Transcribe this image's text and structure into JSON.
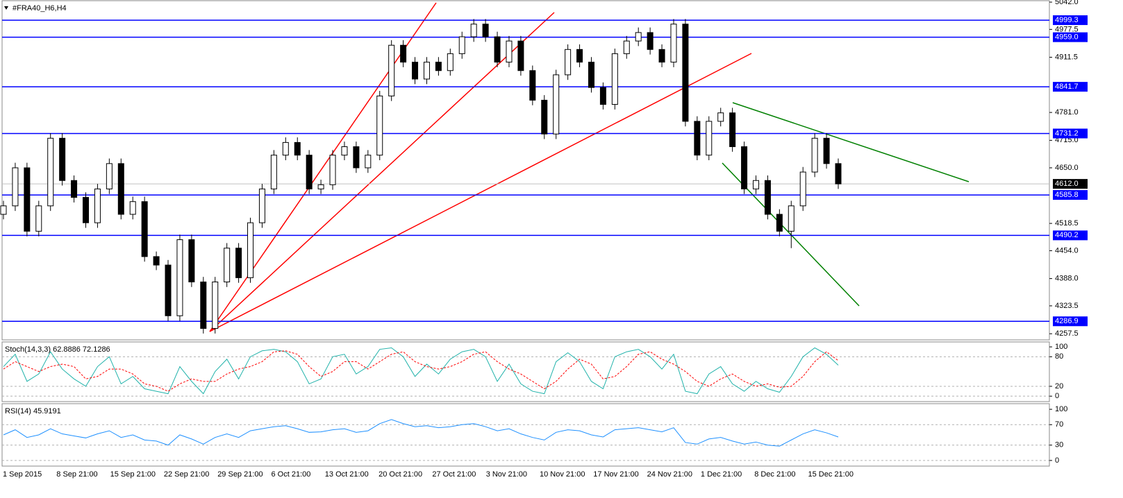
{
  "chart_data": [
    {
      "type": "candlestick",
      "title": "#FRA40_H6,H4",
      "open": [
        4540,
        4560,
        4650,
        4500,
        4560,
        4720,
        4620,
        4580,
        4520,
        4600,
        4660,
        4540,
        4570,
        4440,
        4420,
        4300,
        4480,
        4380,
        4270,
        4380,
        4460,
        4390,
        4520,
        4600,
        4680,
        4710,
        4680,
        4600,
        4610,
        4680,
        4700,
        4650,
        4680,
        4820,
        4940,
        4900,
        4860,
        4900,
        4880,
        4920,
        4960,
        4990,
        4960,
        4900,
        4950,
        4880,
        4810,
        4730,
        4870,
        4930,
        4900,
        4840,
        4800,
        4920,
        4950,
        4970,
        4930,
        4900,
        4990,
        4760,
        4680,
        4760,
        4780,
        4700,
        4600,
        4620,
        4540,
        4500,
        4560,
        4640,
        4720,
        4660
      ],
      "high": [
        4572,
        4662,
        4662,
        4572,
        4732,
        4732,
        4632,
        4592,
        4612,
        4672,
        4672,
        4582,
        4582,
        4452,
        4432,
        4492,
        4492,
        4392,
        4392,
        4472,
        4472,
        4532,
        4612,
        4692,
        4722,
        4722,
        4692,
        4622,
        4692,
        4712,
        4712,
        4692,
        4832,
        4952,
        4952,
        4912,
        4912,
        4912,
        4932,
        4972,
        5002,
        5002,
        4972,
        4962,
        4962,
        4892,
        4822,
        4882,
        4942,
        4942,
        4912,
        4852,
        4932,
        4962,
        4982,
        4982,
        4942,
        5002,
        5002,
        4772,
        4772,
        4792,
        4792,
        4712,
        4632,
        4632,
        4552,
        4572,
        4652,
        4732,
        4732,
        4672
      ],
      "low": [
        4528,
        4548,
        4488,
        4488,
        4548,
        4608,
        4568,
        4508,
        4508,
        4588,
        4528,
        4528,
        4428,
        4408,
        4288,
        4288,
        4368,
        4258,
        4258,
        4368,
        4378,
        4378,
        4508,
        4588,
        4668,
        4668,
        4588,
        4588,
        4598,
        4668,
        4638,
        4638,
        4668,
        4808,
        4888,
        4848,
        4848,
        4868,
        4868,
        4908,
        4948,
        4948,
        4888,
        4888,
        4868,
        4798,
        4718,
        4718,
        4858,
        4888,
        4828,
        4788,
        4788,
        4908,
        4938,
        4918,
        4888,
        4888,
        4748,
        4668,
        4668,
        4748,
        4688,
        4588,
        4588,
        4528,
        4488,
        4460,
        4548,
        4628,
        4648,
        4600
      ],
      "close": [
        4560,
        4650,
        4500,
        4560,
        4720,
        4620,
        4580,
        4520,
        4600,
        4660,
        4540,
        4570,
        4440,
        4420,
        4300,
        4480,
        4380,
        4270,
        4380,
        4460,
        4390,
        4520,
        4600,
        4680,
        4710,
        4680,
        4600,
        4610,
        4680,
        4700,
        4650,
        4680,
        4820,
        4940,
        4900,
        4860,
        4900,
        4880,
        4920,
        4960,
        4990,
        4960,
        4900,
        4950,
        4880,
        4810,
        4730,
        4870,
        4930,
        4900,
        4840,
        4800,
        4920,
        4950,
        4970,
        4930,
        4900,
        4990,
        4760,
        4680,
        4760,
        4780,
        4700,
        4600,
        4620,
        4540,
        4500,
        4560,
        4640,
        4720,
        4660,
        4612
      ],
      "up_color": "#ffffff",
      "down_color": "#000000",
      "wick_color": "#000000",
      "ylim": [
        4243,
        5047
      ],
      "yticks": [
        {
          "value": 5042,
          "label": "5042.0"
        },
        {
          "value": 4977.5,
          "label": "4977.5"
        },
        {
          "value": 4911.5,
          "label": "4911.5"
        },
        {
          "value": 4781,
          "label": "4781.0"
        },
        {
          "value": 4715,
          "label": "4715.0"
        },
        {
          "value": 4650,
          "label": "4650.0"
        },
        {
          "value": 4518.5,
          "label": "4518.5"
        },
        {
          "value": 4454,
          "label": "4454.0"
        },
        {
          "value": 4388,
          "label": "4388.0"
        },
        {
          "value": 4323.5,
          "label": "4323.5"
        },
        {
          "value": 4257.5,
          "label": "4257.5"
        }
      ],
      "levels": [
        4999.3,
        {
          "value": 4959,
          "label": "4959.0"
        },
        4841.7,
        4731.2,
        4585.8,
        4490.2,
        4286.9
      ],
      "level_color": "#0000ff",
      "current_price": {
        "value": 4612,
        "label": "4612.0"
      },
      "x_tick_labels": [
        "1 Sep 2015",
        "8 Sep 21:00",
        "15 Sep 21:00",
        "22 Sep 21:00",
        "29 Sep 21:00",
        "6 Oct 21:00",
        "13 Oct 21:00",
        "20 Oct 21:00",
        "27 Oct 21:00",
        "3 Nov 21:00",
        "10 Nov 21:00",
        "17 Nov 21:00",
        "24 Nov 21:00",
        "1 Dec 21:00",
        "8 Dec 21:00",
        "15 Dec 21:00"
      ]
    },
    {
      "type": "line",
      "title": "Stoch(14,3,3) 62.8886 72.1286",
      "series": [
        {
          "color": "#20b2aa",
          "values": [
            60,
            85,
            30,
            45,
            90,
            55,
            35,
            20,
            60,
            80,
            25,
            40,
            15,
            10,
            5,
            60,
            30,
            5,
            50,
            75,
            35,
            80,
            92,
            95,
            90,
            70,
            25,
            35,
            80,
            85,
            45,
            60,
            95,
            98,
            80,
            40,
            65,
            45,
            75,
            90,
            95,
            80,
            30,
            65,
            25,
            10,
            5,
            70,
            88,
            70,
            30,
            15,
            80,
            90,
            95,
            80,
            55,
            85,
            10,
            5,
            45,
            60,
            25,
            10,
            30,
            15,
            8,
            40,
            80,
            98,
            85,
            62.8886
          ]
        },
        {
          "color": "#ff0000",
          "dashed": true,
          "values": [
            55,
            70,
            60,
            50,
            60,
            65,
            60,
            35,
            40,
            55,
            55,
            45,
            25,
            20,
            10,
            25,
            35,
            30,
            30,
            45,
            55,
            60,
            70,
            90,
            92,
            85,
            60,
            40,
            50,
            70,
            70,
            55,
            70,
            85,
            90,
            70,
            60,
            55,
            60,
            70,
            85,
            90,
            70,
            55,
            45,
            30,
            15,
            30,
            55,
            75,
            65,
            35,
            40,
            60,
            85,
            90,
            75,
            65,
            50,
            30,
            20,
            35,
            45,
            30,
            20,
            25,
            18,
            20,
            40,
            70,
            90,
            72.1286
          ]
        }
      ],
      "ylim": [
        -11,
        110
      ],
      "yticks": [
        0,
        20,
        80,
        100
      ]
    },
    {
      "type": "line",
      "title": "RSI(14) 45.9191",
      "series": [
        {
          "color": "#1e90ff",
          "values": [
            50,
            60,
            45,
            50,
            62,
            52,
            48,
            44,
            52,
            58,
            45,
            50,
            40,
            38,
            30,
            50,
            42,
            32,
            45,
            52,
            45,
            58,
            62,
            66,
            68,
            62,
            55,
            56,
            60,
            62,
            55,
            58,
            72,
            80,
            72,
            66,
            68,
            64,
            66,
            70,
            72,
            66,
            58,
            62,
            52,
            45,
            40,
            55,
            60,
            58,
            50,
            46,
            60,
            62,
            64,
            60,
            56,
            64,
            35,
            32,
            42,
            45,
            38,
            32,
            36,
            30,
            28,
            40,
            52,
            60,
            54,
            45.9191
          ]
        }
      ],
      "ylim": [
        -11,
        111
      ],
      "yticks": [
        0,
        30,
        70,
        100
      ]
    }
  ]
}
